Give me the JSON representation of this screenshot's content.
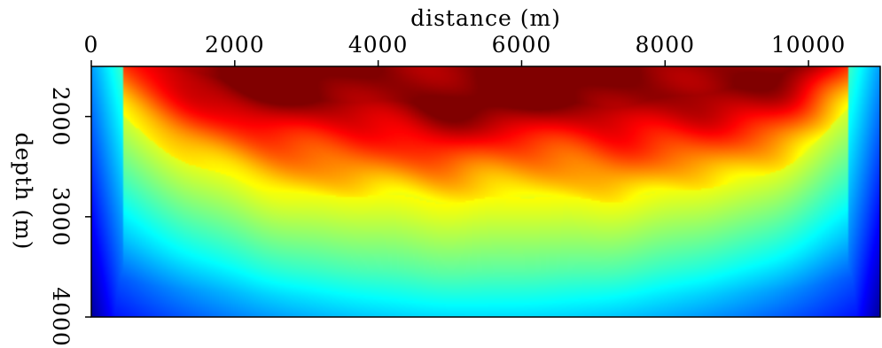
{
  "chart_data": {
    "type": "heatmap",
    "xlabel": "distance (m)",
    "ylabel": "depth (m)",
    "xlim": [
      0,
      11000
    ],
    "ylim": [
      1500,
      4000
    ],
    "x_ticks": [
      0,
      2000,
      4000,
      6000,
      8000,
      10000
    ],
    "x_tick_labels": [
      "0",
      "2000",
      "4000",
      "6000",
      "8000",
      "10000"
    ],
    "y_ticks": [
      2000,
      3000,
      4000
    ],
    "y_tick_labels": [
      "2000",
      "3000",
      "4000"
    ],
    "x_axis_position": "top",
    "y_axis_direction": "downward",
    "colormap": "jet",
    "colormap_direction": "high values red (shallow center), low values blue (deep edges)",
    "grid": false,
    "legend": "none",
    "value_field_description": "smooth bowl-shaped field: dark red at shallow depth in the center (about 2500–9000 m distance), grading through yellow near 2600–2900 m depth to cyan and dark blue at the deep corners",
    "colors": {
      "dark_red": "#800000",
      "red": "#ff0000",
      "yellow": "#ffff00",
      "cyan": "#00ffff",
      "blue": "#0000ff",
      "dark_blue": "#00008f"
    }
  }
}
